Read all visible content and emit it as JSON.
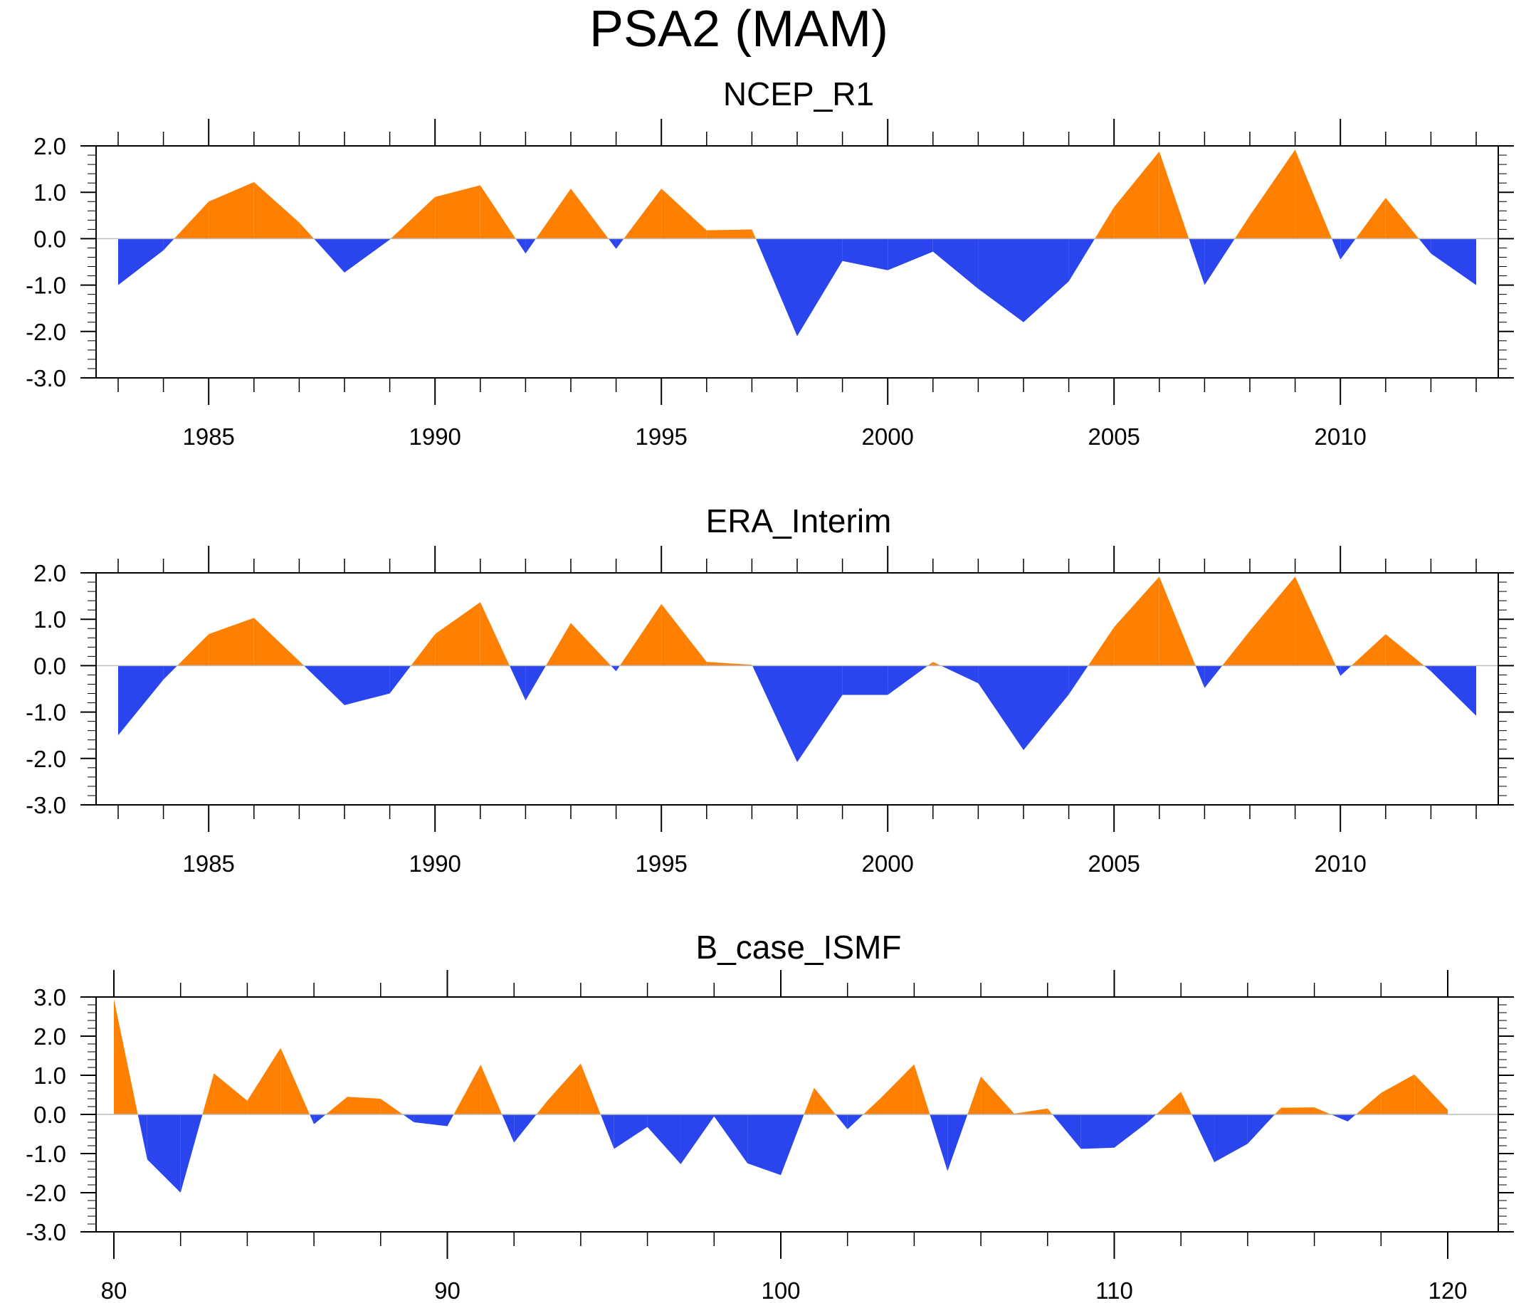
{
  "figure_title": "PSA2 (MAM)",
  "colors": {
    "positive": "#ff8000",
    "negative": "#2a44ee",
    "axis": "#000000",
    "zero_line": "#bbbbbb"
  },
  "chart_data": [
    {
      "type": "area",
      "title": "NCEP_R1",
      "xlim": [
        1983,
        2013
      ],
      "xticks": [
        1985,
        1990,
        1995,
        2000,
        2005,
        2010
      ],
      "xtick_labels": [
        "1985",
        "1990",
        "1995",
        "2000",
        "2005",
        "2010"
      ],
      "ylim": [
        -3,
        2
      ],
      "yticks": [
        -3,
        -2,
        -1,
        0,
        1,
        2
      ],
      "ytick_labels": [
        "-3.0",
        "-2.0",
        "-1.0",
        "0.0",
        "1.0",
        "2.0"
      ],
      "x": [
        1983,
        1984,
        1985,
        1986,
        1987,
        1988,
        1989,
        1990,
        1991,
        1992,
        1993,
        1994,
        1995,
        1996,
        1997,
        1998,
        1999,
        2000,
        2001,
        2002,
        2003,
        2004,
        2005,
        2006,
        2007,
        2008,
        2009,
        2010,
        2011,
        2012,
        2013
      ],
      "values": [
        -1.0,
        -0.25,
        0.8,
        1.22,
        0.35,
        -0.73,
        -0.02,
        0.9,
        1.15,
        -0.32,
        1.08,
        -0.22,
        1.08,
        0.18,
        0.2,
        -2.1,
        -0.48,
        -0.68,
        -0.28,
        -1.08,
        -1.8,
        -0.92,
        0.68,
        1.88,
        -1.0,
        0.5,
        1.92,
        -0.45,
        0.88,
        -0.32,
        -1.0
      ]
    },
    {
      "type": "area",
      "title": "ERA_Interim",
      "xlim": [
        1983,
        2013
      ],
      "xticks": [
        1985,
        1990,
        1995,
        2000,
        2005,
        2010
      ],
      "xtick_labels": [
        "1985",
        "1990",
        "1995",
        "2000",
        "2005",
        "2010"
      ],
      "ylim": [
        -3,
        2
      ],
      "yticks": [
        -3,
        -2,
        -1,
        0,
        1,
        2
      ],
      "ytick_labels": [
        "-3.0",
        "-2.0",
        "-1.0",
        "0.0",
        "1.0",
        "2.0"
      ],
      "x": [
        1983,
        1984,
        1985,
        1986,
        1987,
        1988,
        1989,
        1990,
        1991,
        1992,
        1993,
        1994,
        1995,
        1996,
        1997,
        1998,
        1999,
        2000,
        2001,
        2002,
        2003,
        2004,
        2005,
        2006,
        2007,
        2008,
        2009,
        2010,
        2011,
        2012,
        2013
      ],
      "values": [
        -1.5,
        -0.3,
        0.68,
        1.03,
        0.1,
        -0.85,
        -0.6,
        0.68,
        1.37,
        -0.75,
        0.92,
        -0.12,
        1.33,
        0.08,
        0.02,
        -2.08,
        -0.63,
        -0.63,
        0.08,
        -0.38,
        -1.82,
        -0.62,
        0.83,
        1.92,
        -0.48,
        0.75,
        1.92,
        -0.22,
        0.68,
        -0.12,
        -1.08
      ]
    },
    {
      "type": "area",
      "title": "B_case_ISMF",
      "xlim": [
        80,
        120
      ],
      "xticks": [
        80,
        90,
        100,
        110,
        120
      ],
      "xtick_labels": [
        "80",
        "90",
        "100",
        "110",
        "120"
      ],
      "ylim": [
        -3,
        3
      ],
      "yticks": [
        -3,
        -2,
        -1,
        0,
        1,
        2,
        3
      ],
      "ytick_labels": [
        "-3.0",
        "-2.0",
        "-1.0",
        "0.0",
        "1.0",
        "2.0",
        "3.0"
      ],
      "x": [
        80,
        81,
        82,
        83,
        84,
        85,
        86,
        87,
        88,
        89,
        90,
        91,
        92,
        93,
        94,
        95,
        96,
        97,
        98,
        99,
        100,
        101,
        102,
        103,
        104,
        105,
        106,
        107,
        108,
        109,
        110,
        111,
        112,
        113,
        114,
        115,
        116,
        117,
        118,
        119,
        120
      ],
      "values": [
        2.95,
        -1.15,
        -2.0,
        1.05,
        0.35,
        1.7,
        -0.25,
        0.45,
        0.4,
        -0.2,
        -0.3,
        1.27,
        -0.72,
        0.35,
        1.3,
        -0.88,
        -0.32,
        -1.27,
        -0.05,
        -1.25,
        -1.55,
        0.68,
        -0.38,
        0.42,
        1.28,
        -1.45,
        0.97,
        0.02,
        0.15,
        -0.88,
        -0.85,
        -0.2,
        0.58,
        -1.22,
        -0.75,
        0.17,
        0.18,
        -0.18,
        0.55,
        1.02,
        0.12
      ]
    }
  ]
}
